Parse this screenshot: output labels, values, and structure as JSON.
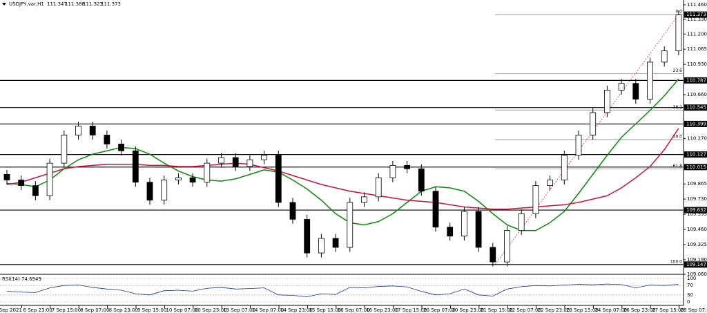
{
  "chart_data": {
    "type": "candlestick",
    "symbol": "USDJPY,var,H1",
    "quote": [
      111.347,
      111.388,
      111.323,
      111.373
    ],
    "x_labels": [
      "6 Sep 2021",
      "6 Sep 23:00",
      "7 Sep 15:00",
      "8 Sep 07:00",
      "8 Sep 23:00",
      "9 Sep 15:00",
      "10 Sep 07:00",
      "10 Sep 23:00",
      "13 Sep 07:00",
      "14 Sep 07:00",
      "14 Sep 23:00",
      "15 Sep 15:00",
      "16 Sep 07:00",
      "16 Sep 23:00",
      "17 Sep 15:00",
      "20 Sep 07:00",
      "20 Sep 23:00",
      "21 Sep 15:00",
      "22 Sep 07:00",
      "22 Sep 23:00",
      "23 Sep 15:00",
      "24 Sep 07:00",
      "26 Sep 23:00",
      "27 Sep 15:00",
      "28 Sep 07:00"
    ],
    "open": [
      109.95,
      109.9,
      109.85,
      109.76,
      110.05,
      110.3,
      110.38,
      110.3,
      110.22,
      110.16,
      109.88,
      109.72,
      109.9,
      109.92,
      109.88,
      110.05,
      110.1,
      110.02,
      110.08,
      110.12,
      109.7,
      109.55,
      109.25,
      109.38,
      109.3,
      109.7,
      109.75,
      109.92,
      110.03,
      110.0,
      109.8,
      109.48,
      109.4,
      109.62,
      109.3,
      109.17,
      109.45,
      109.6,
      109.85,
      109.9,
      110.12,
      110.3,
      110.5,
      110.7,
      110.76,
      110.62,
      110.95,
      111.05
    ],
    "high": [
      109.99,
      109.94,
      109.89,
      110.09,
      110.34,
      110.42,
      110.42,
      110.34,
      110.26,
      110.2,
      109.92,
      109.94,
      109.96,
      109.96,
      110.09,
      110.14,
      110.14,
      110.12,
      110.16,
      110.16,
      109.74,
      109.59,
      109.42,
      109.42,
      109.74,
      109.79,
      109.96,
      110.07,
      110.07,
      110.04,
      109.84,
      109.52,
      109.66,
      109.66,
      109.34,
      109.49,
      109.64,
      109.89,
      109.94,
      110.16,
      110.34,
      110.54,
      110.74,
      110.8,
      110.8,
      110.99,
      111.09,
      111.41
    ],
    "low": [
      109.86,
      109.81,
      109.72,
      109.72,
      110.01,
      110.26,
      110.26,
      110.18,
      110.12,
      109.84,
      109.68,
      109.68,
      109.86,
      109.84,
      109.84,
      110.01,
      109.98,
      109.98,
      110.04,
      109.66,
      109.51,
      109.21,
      109.21,
      109.26,
      109.26,
      109.66,
      109.71,
      109.88,
      109.96,
      109.76,
      109.44,
      109.36,
      109.36,
      109.26,
      109.13,
      109.13,
      109.41,
      109.56,
      109.81,
      109.86,
      110.08,
      110.26,
      110.46,
      110.66,
      110.58,
      110.58,
      110.91,
      111.01
    ],
    "close": [
      109.9,
      109.85,
      109.76,
      110.05,
      110.3,
      110.38,
      110.3,
      110.22,
      110.16,
      109.88,
      109.72,
      109.9,
      109.92,
      109.88,
      110.05,
      110.1,
      110.02,
      110.08,
      110.12,
      109.7,
      109.55,
      109.25,
      109.38,
      109.3,
      109.7,
      109.75,
      109.92,
      110.03,
      110.0,
      109.8,
      109.48,
      109.4,
      109.62,
      109.3,
      109.17,
      109.45,
      109.6,
      109.85,
      109.9,
      110.12,
      110.3,
      110.5,
      110.7,
      110.76,
      110.62,
      110.95,
      111.05,
      111.37
    ],
    "series": [
      {
        "color": "#0a8a0a",
        "values": [
          109.87,
          109.86,
          109.84,
          109.9,
          110.0,
          110.08,
          110.13,
          110.16,
          110.19,
          110.18,
          110.13,
          110.05,
          109.98,
          109.93,
          109.9,
          109.89,
          109.91,
          109.95,
          109.99,
          109.97,
          109.9,
          109.82,
          109.72,
          109.6,
          109.52,
          109.5,
          109.53,
          109.6,
          109.7,
          109.8,
          109.84,
          109.83,
          109.8,
          109.71,
          109.6,
          109.5,
          109.45,
          109.45,
          109.52,
          109.62,
          109.78,
          109.95,
          110.12,
          110.28,
          110.4,
          110.52,
          110.65,
          110.8
        ]
      },
      {
        "color": "#d0103a",
        "values": [
          109.86,
          109.88,
          109.92,
          109.96,
          110.0,
          110.02,
          110.03,
          110.04,
          110.04,
          110.04,
          110.03,
          110.03,
          110.02,
          110.02,
          110.03,
          110.04,
          110.05,
          110.04,
          110.01,
          109.98,
          109.94,
          109.9,
          109.86,
          109.83,
          109.8,
          109.78,
          109.76,
          109.74,
          109.72,
          109.71,
          109.7,
          109.68,
          109.66,
          109.65,
          109.64,
          109.64,
          109.65,
          109.66,
          109.67,
          109.68,
          109.7,
          109.73,
          109.76,
          109.83,
          109.92,
          110.02,
          110.17,
          110.36
        ]
      }
    ],
    "ylim": [
      109.06,
      111.46
    ],
    "yticks": [
      {
        "value": 111.46,
        "label": "111.460"
      },
      {
        "value": 111.33,
        "label": "111.330"
      },
      {
        "value": 111.2,
        "label": "111.200"
      },
      {
        "value": 111.065,
        "label": "111.065"
      },
      {
        "value": 110.93,
        "label": "110.930"
      },
      {
        "value": 110.66,
        "label": "110.660"
      },
      {
        "value": 110.27,
        "label": "110.270"
      },
      {
        "value": 109.865,
        "label": "109.865"
      },
      {
        "value": 109.73,
        "label": "109.730"
      },
      {
        "value": 109.595,
        "label": "109.595"
      },
      {
        "value": 109.46,
        "label": "109.460"
      },
      {
        "value": 109.325,
        "label": "109.325"
      },
      {
        "value": 109.19,
        "label": "109.190"
      },
      {
        "value": 109.06,
        "label": "109.060"
      }
    ],
    "levels": [
      110.787,
      110.545,
      110.399,
      110.127,
      110.015,
      109.632,
      109.147
    ],
    "current_price": 111.373,
    "fib": {
      "labels": [
        "0.0",
        "23.6",
        "38.2",
        "50.0",
        "61.8",
        "100.0"
      ],
      "values": [
        111.373,
        110.848,
        110.523,
        110.26,
        109.998,
        109.147
      ]
    },
    "rsi": {
      "title": "RSI(14) 74.6949",
      "color": "#1e2c8a",
      "ylim": [
        0,
        100
      ],
      "yticks": [
        100,
        70,
        30,
        0
      ],
      "values": [
        45,
        42,
        40,
        60,
        70,
        72,
        62,
        55,
        50,
        35,
        30,
        48,
        50,
        46,
        58,
        62,
        55,
        57,
        60,
        30,
        28,
        22,
        35,
        32,
        62,
        60,
        66,
        68,
        64,
        45,
        30,
        35,
        55,
        30,
        25,
        55,
        65,
        70,
        68,
        72,
        75,
        73,
        76,
        74,
        60,
        72,
        70,
        75
      ]
    }
  }
}
